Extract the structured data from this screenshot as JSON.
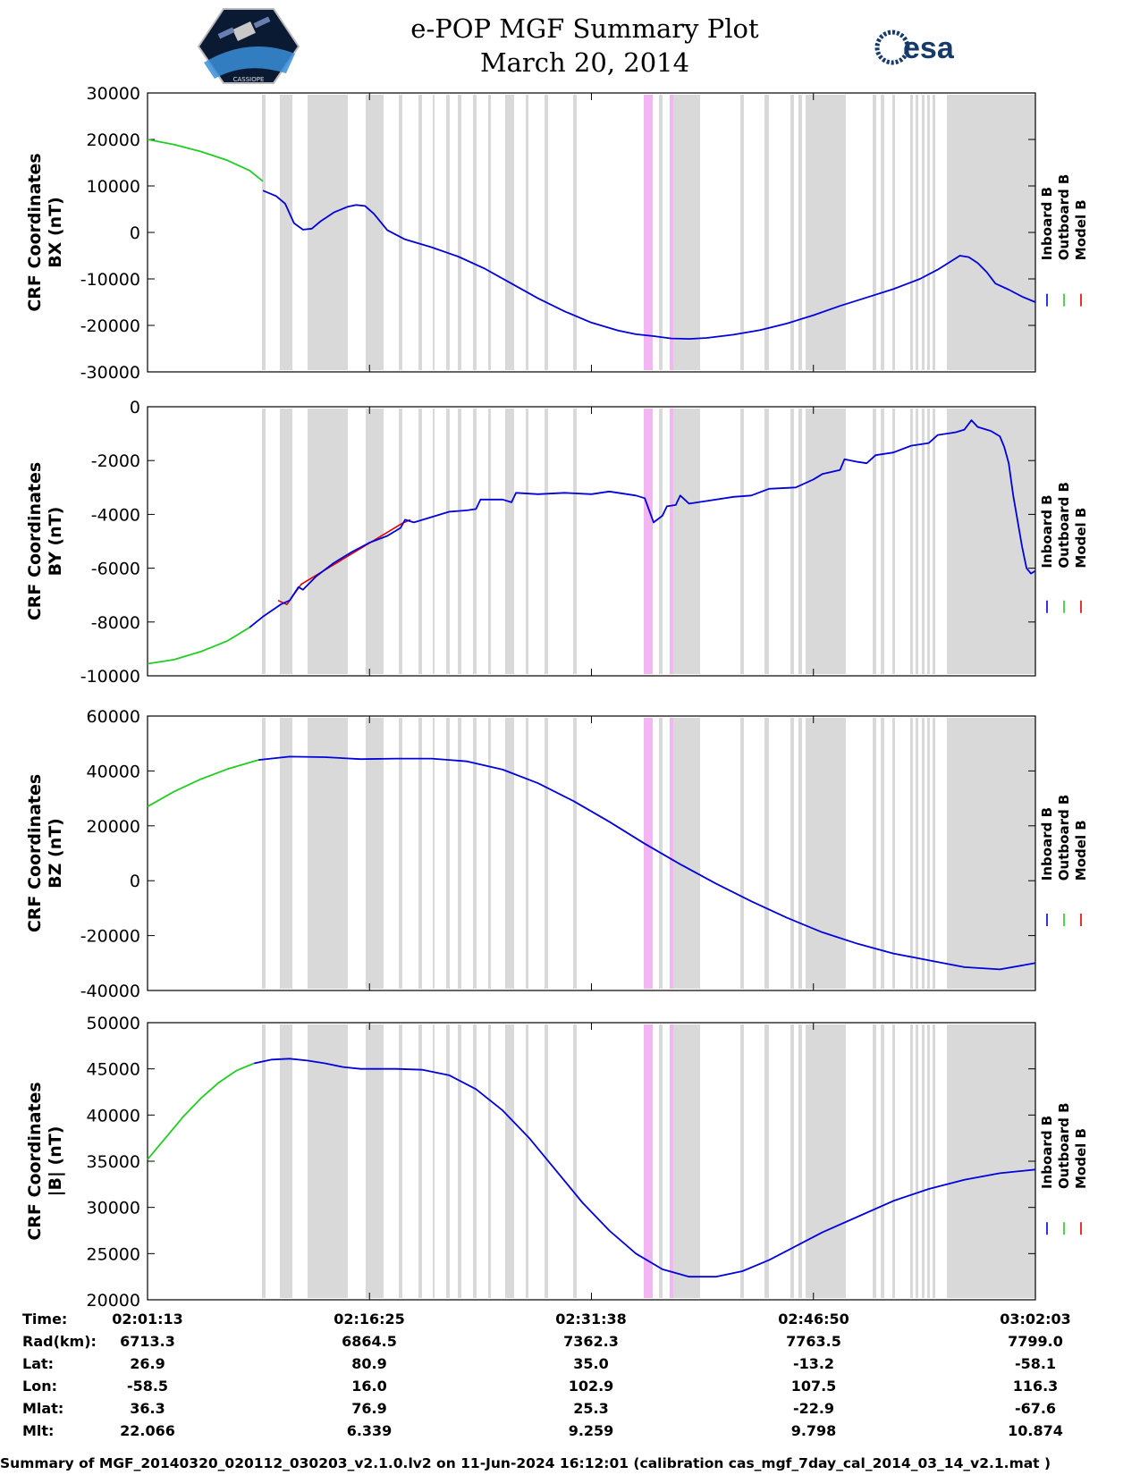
{
  "title": {
    "line1": "e-POP MGF Summary Plot",
    "line2": "March 20, 2014"
  },
  "logos": {
    "left": "satellite-mission-patch",
    "right": "esa",
    "right_text": "esa",
    "brand_color": "#163a6b"
  },
  "colors": {
    "inboard": "#0000dd",
    "outboard": "#22cc22",
    "model": "#dd0000",
    "gap": "#d9d9d9",
    "event": "#f2b6f2"
  },
  "legend": [
    "Inboard B",
    "Outboard B",
    "Model B"
  ],
  "footer": "Summary of MGF_20140320_020112_030203_v2.1.0.lv2 on 11-Jun-2024 16:12:01 (calibration cas_mgf_7day_cal_2014_03_14_v2.1.mat )",
  "info_table": {
    "rows": [
      {
        "label": "Time:",
        "values": [
          "02:01:13",
          "02:16:25",
          "02:31:38",
          "02:46:50",
          "03:02:03"
        ]
      },
      {
        "label": "Rad(km):",
        "values": [
          "6713.3",
          "6864.5",
          "7362.3",
          "7763.5",
          "7799.0"
        ]
      },
      {
        "label": "Lat:",
        "values": [
          "26.9",
          "80.9",
          "35.0",
          "-13.2",
          "-58.1"
        ]
      },
      {
        "label": "Lon:",
        "values": [
          "-58.5",
          "16.0",
          "102.9",
          "107.5",
          "116.3"
        ]
      },
      {
        "label": "Mlat:",
        "values": [
          "36.3",
          "76.9",
          "25.3",
          "-22.9",
          "-67.6"
        ]
      },
      {
        "label": "Mlt:",
        "values": [
          "22.066",
          "6.339",
          "9.259",
          "9.798",
          "10.874"
        ]
      }
    ]
  },
  "chart_data": [
    {
      "type": "line",
      "ylabel": [
        "CRF Coordinates",
        "BX (nT)"
      ],
      "ylim": [
        -30000,
        30000
      ],
      "yticks": [
        "30000",
        "20000",
        "10000",
        "0",
        "-10000",
        "-20000",
        "-30000"
      ],
      "xlim": [
        0,
        100
      ],
      "xtick_positions": [
        0,
        25,
        50,
        75,
        100
      ],
      "outboard": [
        [
          0,
          20000
        ],
        [
          3,
          18900
        ],
        [
          6,
          17400
        ],
        [
          9,
          15500
        ],
        [
          11.5,
          13300
        ],
        [
          13,
          11000
        ]
      ],
      "inboard": [
        [
          13,
          9000
        ],
        [
          14.5,
          7800
        ],
        [
          15.5,
          6200
        ],
        [
          16.5,
          2000
        ],
        [
          17.5,
          600
        ],
        [
          18.5,
          800
        ],
        [
          19.5,
          2400
        ],
        [
          21,
          4300
        ],
        [
          22.5,
          5500
        ],
        [
          23.5,
          5900
        ],
        [
          24.5,
          5700
        ],
        [
          25.5,
          4000
        ],
        [
          27,
          500
        ],
        [
          29,
          -1500
        ],
        [
          32,
          -3200
        ],
        [
          35,
          -5200
        ],
        [
          38,
          -7800
        ],
        [
          41,
          -11000
        ],
        [
          44,
          -14200
        ],
        [
          47,
          -17000
        ],
        [
          50,
          -19400
        ],
        [
          53,
          -21100
        ],
        [
          55,
          -21900
        ],
        [
          57,
          -22300
        ],
        [
          59,
          -22800
        ],
        [
          61,
          -22900
        ],
        [
          63,
          -22700
        ],
        [
          66,
          -22000
        ],
        [
          69,
          -21000
        ],
        [
          72,
          -19600
        ],
        [
          75,
          -17800
        ],
        [
          78,
          -15800
        ],
        [
          81,
          -14000
        ],
        [
          84,
          -12200
        ],
        [
          87,
          -10000
        ],
        [
          89,
          -8000
        ],
        [
          90.5,
          -6200
        ],
        [
          91.5,
          -5000
        ],
        [
          92.5,
          -5300
        ],
        [
          93.5,
          -6600
        ],
        [
          94.5,
          -8500
        ],
        [
          95.5,
          -11000
        ],
        [
          97,
          -12300
        ],
        [
          98.5,
          -13800
        ],
        [
          100,
          -15000
        ]
      ],
      "model": []
    },
    {
      "type": "line",
      "ylabel": [
        "CRF Coordinates",
        "BY (nT)"
      ],
      "ylim": [
        -10000,
        0
      ],
      "yticks": [
        "0",
        "-2000",
        "-4000",
        "-6000",
        "-8000",
        "-10000"
      ],
      "xlim": [
        0,
        100
      ],
      "xtick_positions": [
        0,
        25,
        50,
        75,
        100
      ],
      "outboard": [
        [
          0,
          -9550
        ],
        [
          3,
          -9400
        ],
        [
          6,
          -9100
        ],
        [
          9,
          -8700
        ],
        [
          11.5,
          -8200
        ]
      ],
      "inboard": [
        [
          11.5,
          -8200
        ],
        [
          13,
          -7800
        ],
        [
          15,
          -7350
        ],
        [
          16,
          -7200
        ],
        [
          17,
          -6700
        ],
        [
          17.5,
          -6800
        ],
        [
          19,
          -6300
        ],
        [
          21,
          -5800
        ],
        [
          23,
          -5400
        ],
        [
          25,
          -5050
        ],
        [
          27,
          -4800
        ],
        [
          28.5,
          -4500
        ],
        [
          29,
          -4200
        ],
        [
          30,
          -4300
        ],
        [
          32,
          -4100
        ],
        [
          34,
          -3900
        ],
        [
          36,
          -3850
        ],
        [
          37,
          -3800
        ],
        [
          37.5,
          -3450
        ],
        [
          40,
          -3450
        ],
        [
          41,
          -3550
        ],
        [
          41.5,
          -3200
        ],
        [
          44,
          -3250
        ],
        [
          47,
          -3200
        ],
        [
          50,
          -3250
        ],
        [
          52,
          -3150
        ],
        [
          55,
          -3300
        ],
        [
          56,
          -3400
        ],
        [
          57,
          -4300
        ],
        [
          58,
          -4050
        ],
        [
          58.5,
          -3700
        ],
        [
          59.5,
          -3650
        ],
        [
          60,
          -3300
        ],
        [
          61,
          -3600
        ],
        [
          63,
          -3500
        ],
        [
          66,
          -3350
        ],
        [
          68,
          -3300
        ],
        [
          70,
          -3050
        ],
        [
          73,
          -3000
        ],
        [
          75,
          -2700
        ],
        [
          76,
          -2500
        ],
        [
          78,
          -2350
        ],
        [
          78.5,
          -1950
        ],
        [
          80,
          -2050
        ],
        [
          81,
          -2100
        ],
        [
          82,
          -1800
        ],
        [
          84,
          -1700
        ],
        [
          86,
          -1450
        ],
        [
          88,
          -1350
        ],
        [
          89,
          -1050
        ],
        [
          91,
          -950
        ],
        [
          92,
          -850
        ],
        [
          92.8,
          -500
        ],
        [
          93.5,
          -750
        ],
        [
          95,
          -900
        ],
        [
          96,
          -1100
        ],
        [
          96.5,
          -1500
        ],
        [
          97,
          -2100
        ],
        [
          97.5,
          -3300
        ],
        [
          98.5,
          -5200
        ],
        [
          99,
          -6000
        ],
        [
          99.5,
          -6200
        ],
        [
          100,
          -6100
        ]
      ],
      "model": [
        [
          14.7,
          -7200
        ],
        [
          15.7,
          -7350
        ],
        [
          17.3,
          -6600
        ],
        [
          28.6,
          -4350
        ],
        [
          29.6,
          -4200
        ]
      ]
    },
    {
      "type": "line",
      "ylabel": [
        "CRF Coordinates",
        "BZ (nT)"
      ],
      "ylim": [
        -40000,
        60000
      ],
      "yticks": [
        "60000",
        "40000",
        "20000",
        "0",
        "-20000",
        "-40000"
      ],
      "xlim": [
        0,
        100
      ],
      "xtick_positions": [
        0,
        25,
        50,
        75,
        100
      ],
      "outboard": [
        [
          0,
          27000
        ],
        [
          3,
          32500
        ],
        [
          6,
          37000
        ],
        [
          9,
          40700
        ],
        [
          12.5,
          44000
        ]
      ],
      "inboard": [
        [
          12.5,
          44000
        ],
        [
          16,
          45200
        ],
        [
          20,
          45000
        ],
        [
          24,
          44300
        ],
        [
          28,
          44500
        ],
        [
          32,
          44500
        ],
        [
          36,
          43500
        ],
        [
          40,
          40500
        ],
        [
          44,
          35500
        ],
        [
          48,
          29000
        ],
        [
          52,
          21500
        ],
        [
          56,
          13500
        ],
        [
          60,
          6000
        ],
        [
          64,
          -1000
        ],
        [
          68,
          -7500
        ],
        [
          72,
          -13500
        ],
        [
          76,
          -18800
        ],
        [
          80,
          -23000
        ],
        [
          84,
          -26500
        ],
        [
          88,
          -29000
        ],
        [
          92,
          -31500
        ],
        [
          96,
          -32300
        ],
        [
          100,
          -30000
        ]
      ],
      "model": []
    },
    {
      "type": "line",
      "ylabel": [
        "CRF Coordinates",
        "|B| (nT)"
      ],
      "ylim": [
        20000,
        50000
      ],
      "yticks": [
        "50000",
        "45000",
        "40000",
        "35000",
        "30000",
        "25000",
        "20000"
      ],
      "xlim": [
        0,
        100
      ],
      "xtick_positions": [
        0,
        25,
        50,
        75,
        100
      ],
      "outboard": [
        [
          0,
          35200
        ],
        [
          2,
          37500
        ],
        [
          4,
          39800
        ],
        [
          6,
          41800
        ],
        [
          8,
          43500
        ],
        [
          10,
          44800
        ],
        [
          12,
          45600
        ]
      ],
      "inboard": [
        [
          12,
          45600
        ],
        [
          14,
          46000
        ],
        [
          16,
          46100
        ],
        [
          18,
          45900
        ],
        [
          20,
          45600
        ],
        [
          22,
          45200
        ],
        [
          24,
          45000
        ],
        [
          28,
          45000
        ],
        [
          31,
          44900
        ],
        [
          34,
          44300
        ],
        [
          37,
          42800
        ],
        [
          40,
          40500
        ],
        [
          43,
          37500
        ],
        [
          46,
          34000
        ],
        [
          49,
          30500
        ],
        [
          52,
          27500
        ],
        [
          55,
          25000
        ],
        [
          58,
          23300
        ],
        [
          61,
          22500
        ],
        [
          64,
          22500
        ],
        [
          67,
          23100
        ],
        [
          70,
          24300
        ],
        [
          73,
          25800
        ],
        [
          76,
          27300
        ],
        [
          80,
          29000
        ],
        [
          84,
          30700
        ],
        [
          88,
          32000
        ],
        [
          92,
          33000
        ],
        [
          96,
          33700
        ],
        [
          100,
          34100
        ]
      ],
      "model": []
    }
  ]
}
